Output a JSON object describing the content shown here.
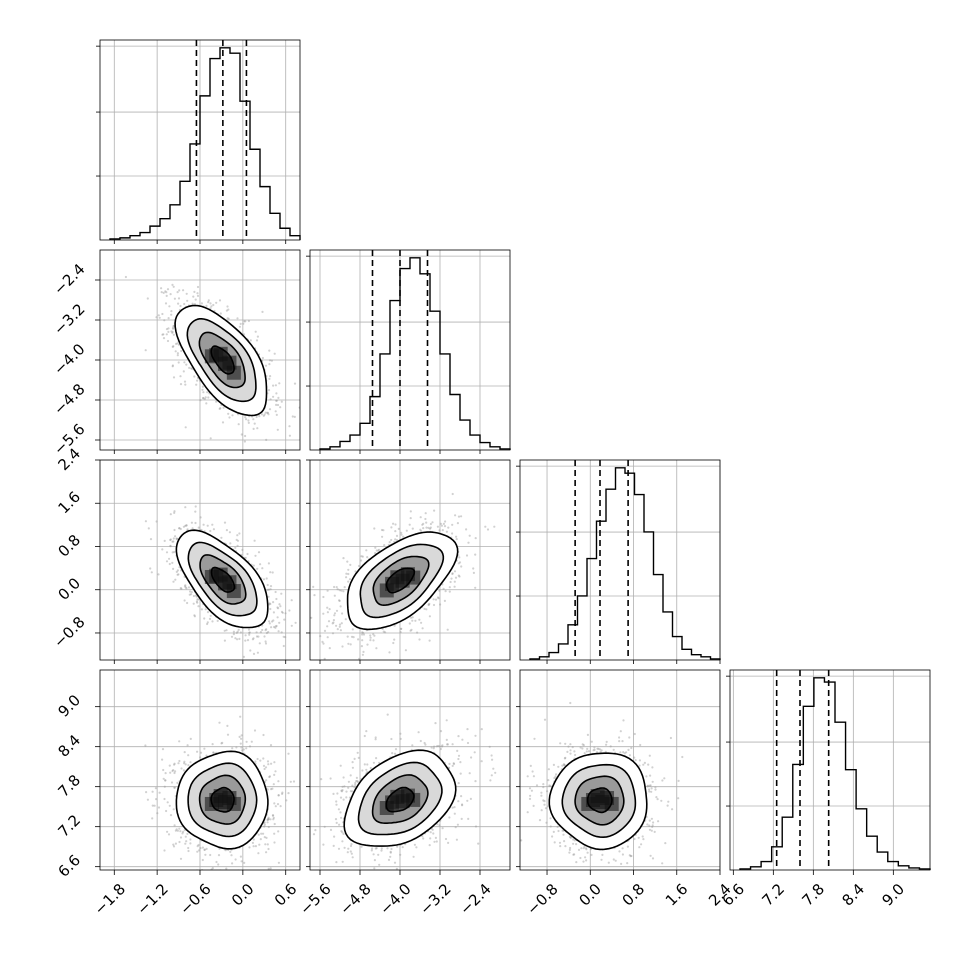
{
  "chart_data": {
    "type": "corner",
    "parameters": [
      {
        "index": 0,
        "range": [
          -2.0,
          0.8
        ],
        "ticks": [
          -1.8,
          -1.2,
          -0.6,
          0.0,
          0.6
        ],
        "tick_labels": [
          "−1.8",
          "−1.2",
          "−0.6",
          "0.0",
          "0.6"
        ],
        "quantiles": [
          -0.65,
          -0.28,
          0.05
        ],
        "hist": [
          1,
          2,
          4,
          7,
          13,
          20,
          33,
          55,
          90,
          135,
          170,
          180,
          175,
          130,
          85,
          50,
          25,
          11,
          4
        ]
      },
      {
        "index": 1,
        "range": [
          -5.8,
          -1.8
        ],
        "ticks": [
          -5.6,
          -4.8,
          -4.0,
          -3.2,
          -2.4
        ],
        "tick_labels": [
          "−5.6",
          "−4.8",
          "−4.0",
          "−3.2",
          "−2.4"
        ],
        "quantiles": [
          -4.55,
          -4.0,
          -3.45
        ],
        "hist": [
          1,
          3,
          8,
          14,
          25,
          50,
          90,
          140,
          170,
          180,
          165,
          130,
          90,
          52,
          28,
          14,
          7,
          3,
          1
        ]
      },
      {
        "index": 2,
        "range": [
          -1.3,
          2.4
        ],
        "ticks": [
          -0.8,
          0.0,
          0.8,
          1.6,
          2.4
        ],
        "tick_labels": [
          "−0.8",
          "0.0",
          "0.8",
          "1.6",
          "2.4"
        ],
        "quantiles": [
          -0.28,
          0.18,
          0.7
        ],
        "hist": [
          1,
          3,
          7,
          15,
          33,
          60,
          95,
          130,
          160,
          180,
          175,
          155,
          120,
          80,
          45,
          22,
          10,
          5,
          3,
          1
        ]
      },
      {
        "index": 3,
        "range": [
          6.55,
          9.55
        ],
        "ticks": [
          6.6,
          7.2,
          7.8,
          8.4,
          9.0
        ],
        "tick_labels": [
          "6.6",
          "7.2",
          "7.8",
          "8.4",
          "9.0"
        ],
        "quantiles": [
          7.25,
          7.6,
          8.03
        ],
        "hist": [
          1,
          3,
          8,
          22,
          50,
          100,
          155,
          182,
          178,
          140,
          95,
          58,
          32,
          17,
          8,
          4,
          2,
          1
        ]
      }
    ],
    "pairs": [
      {
        "x": 0,
        "y": 1,
        "mean": [
          -0.28,
          -4.0
        ],
        "sd": [
          0.32,
          0.55
        ],
        "rho": -0.62
      },
      {
        "x": 0,
        "y": 2,
        "mean": [
          -0.28,
          0.18
        ],
        "sd": [
          0.32,
          0.45
        ],
        "rho": -0.6
      },
      {
        "x": 1,
        "y": 2,
        "mean": [
          -4.0,
          0.18
        ],
        "sd": [
          0.55,
          0.45
        ],
        "rho": 0.55
      },
      {
        "x": 0,
        "y": 3,
        "mean": [
          -0.28,
          7.6
        ],
        "sd": [
          0.32,
          0.36
        ],
        "rho": 0.0
      },
      {
        "x": 1,
        "y": 3,
        "mean": [
          -4.0,
          7.6
        ],
        "sd": [
          0.55,
          0.36
        ],
        "rho": 0.35
      },
      {
        "x": 2,
        "y": 3,
        "mean": [
          0.18,
          7.6
        ],
        "sd": [
          0.45,
          0.36
        ],
        "rho": 0.0
      }
    ],
    "contour_levels_sigma": [
      0.5,
      1.0,
      1.5,
      2.0
    ],
    "grid": true,
    "colors": {
      "line": "#000000",
      "points": "#9a9a9a",
      "grid": "#b0b0b0"
    }
  }
}
